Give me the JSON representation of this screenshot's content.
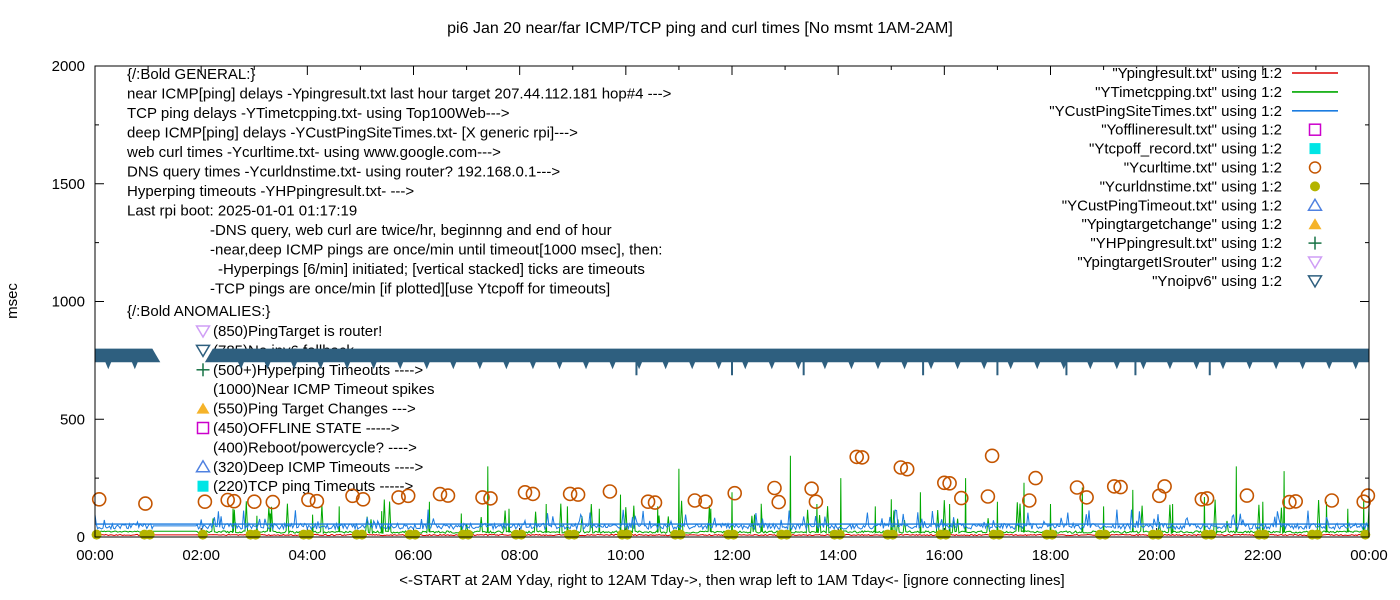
{
  "chart_data": {
    "type": "line",
    "title": "pi6 Jan 20  near/far ICMP/TCP ping and curl times [No msmt 1AM-2AM]",
    "xlabel": "<-START at 2AM Yday, right to 12AM Tday->, then wrap left to 1AM Tday<- [ignore connecting lines]",
    "ylabel": "msec",
    "ylim": [
      0,
      2000
    ],
    "y_ticks": [
      0,
      500,
      1000,
      1500,
      2000
    ],
    "y_minor_tick_step": 250,
    "x_range_hours": [
      0,
      24
    ],
    "x_tick_labels": [
      "00:00",
      "02:00",
      "04:00",
      "06:00",
      "08:00",
      "10:00",
      "12:00",
      "14:00",
      "16:00",
      "18:00",
      "20:00",
      "22:00",
      "00:00"
    ],
    "x_major_tick_hours": 2,
    "x_minor_tick_hours": 1,
    "grid": false,
    "legend_position": "top-right",
    "no_measurement_window_hours": [
      1.08,
      1.92
    ],
    "seed": 20250120,
    "series": [
      {
        "name": "Ypingresult.txt",
        "kind": "noisy-line",
        "color": "#dc0000",
        "baseline_msec": 8.5,
        "noise_msec": 5
      },
      {
        "name": "YTimetcpping.txt",
        "kind": "noisy-line",
        "color": "#00a800",
        "baseline_msec": 21,
        "noise_msec": 10,
        "spike_chance": 0.055,
        "spikes_h_msec": [
          [
            2.6,
            120
          ],
          [
            3.05,
            90
          ],
          [
            3.3,
            100
          ],
          [
            4.1,
            95
          ],
          [
            4.6,
            130
          ],
          [
            5.4,
            110
          ],
          [
            6.3,
            150
          ],
          [
            6.9,
            100
          ],
          [
            7.4,
            300
          ],
          [
            7.8,
            120
          ],
          [
            8.5,
            140
          ],
          [
            8.9,
            130
          ],
          [
            9.5,
            120
          ],
          [
            9.9,
            180
          ],
          [
            10.6,
            130
          ],
          [
            11.0,
            290
          ],
          [
            11.6,
            120
          ],
          [
            12.0,
            190
          ],
          [
            12.55,
            130
          ],
          [
            13.1,
            345
          ],
          [
            13.6,
            140
          ],
          [
            14.05,
            250
          ],
          [
            14.7,
            130
          ],
          [
            15.0,
            160
          ],
          [
            15.55,
            190
          ],
          [
            16.1,
            140
          ],
          [
            16.4,
            250
          ],
          [
            17.0,
            150
          ],
          [
            17.5,
            230
          ],
          [
            18.0,
            140
          ],
          [
            18.6,
            210
          ],
          [
            19.0,
            130
          ],
          [
            19.55,
            200
          ],
          [
            20.3,
            140
          ],
          [
            20.9,
            170
          ],
          [
            21.5,
            300
          ],
          [
            22.0,
            150
          ],
          [
            22.4,
            280
          ],
          [
            23.2,
            150
          ],
          [
            23.6,
            120
          ],
          [
            23.9,
            160
          ]
        ]
      },
      {
        "name": "YCustPingSiteTimes.txt",
        "kind": "noisy-line",
        "color": "#1b7ce0",
        "baseline_msec": 45,
        "noise_msec": 25,
        "ceiling_line_msec": 55
      },
      {
        "name": "Ycurltime.txt",
        "kind": "points-open-circle",
        "color": "#c45500",
        "points_h_msec": [
          [
            0.08,
            160
          ],
          [
            0.95,
            142
          ],
          [
            2.07,
            150
          ],
          [
            2.5,
            157
          ],
          [
            2.62,
            152
          ],
          [
            3.0,
            150
          ],
          [
            3.35,
            148
          ],
          [
            4.02,
            158
          ],
          [
            4.18,
            152
          ],
          [
            4.85,
            175
          ],
          [
            5.05,
            160
          ],
          [
            5.72,
            168
          ],
          [
            5.9,
            175
          ],
          [
            6.5,
            182
          ],
          [
            6.65,
            176
          ],
          [
            7.3,
            168
          ],
          [
            7.45,
            164
          ],
          [
            8.1,
            190
          ],
          [
            8.25,
            183
          ],
          [
            8.95,
            183
          ],
          [
            9.1,
            180
          ],
          [
            9.7,
            193
          ],
          [
            10.42,
            150
          ],
          [
            10.55,
            146
          ],
          [
            11.3,
            155
          ],
          [
            11.5,
            150
          ],
          [
            12.05,
            186
          ],
          [
            12.8,
            208
          ],
          [
            12.88,
            148
          ],
          [
            13.5,
            205
          ],
          [
            13.58,
            150
          ],
          [
            14.35,
            340
          ],
          [
            14.45,
            338
          ],
          [
            15.18,
            295
          ],
          [
            15.3,
            288
          ],
          [
            16.0,
            230
          ],
          [
            16.1,
            228
          ],
          [
            16.32,
            165
          ],
          [
            16.82,
            172
          ],
          [
            16.9,
            345
          ],
          [
            17.6,
            155
          ],
          [
            17.72,
            250
          ],
          [
            18.5,
            210
          ],
          [
            18.68,
            168
          ],
          [
            19.2,
            215
          ],
          [
            19.32,
            212
          ],
          [
            20.05,
            175
          ],
          [
            20.15,
            215
          ],
          [
            20.85,
            160
          ],
          [
            20.95,
            164
          ],
          [
            21.7,
            176
          ],
          [
            22.5,
            148
          ],
          [
            22.62,
            151
          ],
          [
            23.3,
            155
          ],
          [
            23.9,
            150
          ],
          [
            23.98,
            176
          ]
        ]
      },
      {
        "name": "Ycurldnstime.txt",
        "kind": "points-filled-dot",
        "color": "#b4b400",
        "value_msec": 10,
        "per_hour_offsets": [
          0.03,
          0.93
        ],
        "skip_hours": [
          1.93
        ]
      },
      {
        "name": "Ynoipv6",
        "kind": "band",
        "color": "#2e5f7f",
        "band_msec": [
          742,
          800
        ],
        "gap_hours": [
          1.08,
          2.07
        ],
        "halfhour_tip": true,
        "long_tick_hours": [
          10.2,
          12.0,
          13.35,
          15.6,
          17.0,
          18.3,
          19.6,
          21.0
        ]
      }
    ]
  },
  "legend": {
    "entries": [
      {
        "label": "\"Ypingresult.txt\" using 1:2",
        "sample": "line",
        "color": "#dc0000"
      },
      {
        "label": "\"YTimetcpping.txt\" using 1:2",
        "sample": "line",
        "color": "#00a800"
      },
      {
        "label": "\"YCustPingSiteTimes.txt\" using 1:2",
        "sample": "line",
        "color": "#1b7ce0"
      },
      {
        "label": "\"Yofflineresult.txt\" using 1:2",
        "sample": "square-open",
        "color": "#cc00cc"
      },
      {
        "label": "\"Ytcpoff_record.txt\" using 1:2",
        "sample": "square-filled",
        "color": "#00e5e5"
      },
      {
        "label": "\"Ycurltime.txt\" using 1:2",
        "sample": "circle-open",
        "color": "#c45500"
      },
      {
        "label": "\"Ycurldnstime.txt\" using 1:2",
        "sample": "dot",
        "color": "#b4b400"
      },
      {
        "label": "\"YCustPingTimeout.txt\" using 1:2",
        "sample": "triangle-up-open",
        "color": "#4f81e0"
      },
      {
        "label": "\"Ypingtargetchange\" using 1:2",
        "sample": "triangle-up-filled",
        "color": "#f5b32a"
      },
      {
        "label": "\"YHPpingresult.txt\" using 1:2",
        "sample": "plus",
        "color": "#177245"
      },
      {
        "label": "\"YpingtargetISrouter\" using 1:2",
        "sample": "triangle-down-open",
        "color": "#cf9ef5"
      },
      {
        "label": "\"Ynoipv6\" using 1:2",
        "sample": "triangle-down-open",
        "color": "#2e5f7f"
      }
    ]
  },
  "annotations": {
    "general_lines": [
      {
        "text": "{/:Bold GENERAL:}",
        "indent": 0
      },
      {
        "text": "near ICMP[ping] delays -Ypingresult.txt last hour target 207.44.112.181 hop#4 --->",
        "indent": 0
      },
      {
        "text": "TCP ping delays -YTimetcpping.txt- using Top100Web--->",
        "indent": 0
      },
      {
        "text": "deep ICMP[ping] delays -YCustPingSiteTimes.txt- [X generic rpi]--->",
        "indent": 0
      },
      {
        "text": "web curl times -Ycurltime.txt- using www.google.com--->",
        "indent": 0
      },
      {
        "text": "DNS query times -Ycurldnstime.txt- using router? 192.168.0.1--->",
        "indent": 0
      },
      {
        "text": "Hyperping timeouts -YHPpingresult.txt- --->",
        "indent": 0
      },
      {
        "text": "Last rpi boot: 2025-01-01 01:17:19",
        "indent": 0
      },
      {
        "text": "-DNS query, web curl are twice/hr, beginnng and end of hour",
        "indent": 1
      },
      {
        "text": "-near,deep ICMP pings are once/min until timeout[1000 msec], then:",
        "indent": 1
      },
      {
        "text": "-Hyperpings [6/min] initiated; [vertical stacked] ticks are timeouts",
        "indent": 2
      },
      {
        "text": "-TCP pings are once/min [if plotted][use Ytcpoff for timeouts]",
        "indent": 1
      }
    ],
    "anomalies": {
      "header": "{/:Bold ANOMALIES:}",
      "items": [
        {
          "text": "(850)PingTarget is router!",
          "marker": "triangle-down-open",
          "color": "#cf9ef5"
        },
        {
          "text": "(785)No ipv6 fallback",
          "marker": "triangle-down-open",
          "color": "#2e5f7f"
        },
        {
          "text": "(500+)Hyperping Timeouts ---->",
          "marker": "plus",
          "color": "#177245"
        },
        {
          "text": "(1000)Near ICMP Timeout spikes",
          "marker": "none",
          "color": ""
        },
        {
          "text": "(550)Ping Target Changes --->",
          "marker": "triangle-up-filled",
          "color": "#f5b32a"
        },
        {
          "text": "(450)OFFLINE STATE ----->",
          "marker": "square-open",
          "color": "#cc00cc"
        },
        {
          "text": "(400)Reboot/powercycle? ---->",
          "marker": "none",
          "color": ""
        },
        {
          "text": "(320)Deep ICMP Timeouts ---->",
          "marker": "triangle-up-open",
          "color": "#4f81e0"
        },
        {
          "text": "(220)TCP ping Timeouts ----->",
          "marker": "square-filled",
          "color": "#00e5e5"
        }
      ]
    }
  }
}
